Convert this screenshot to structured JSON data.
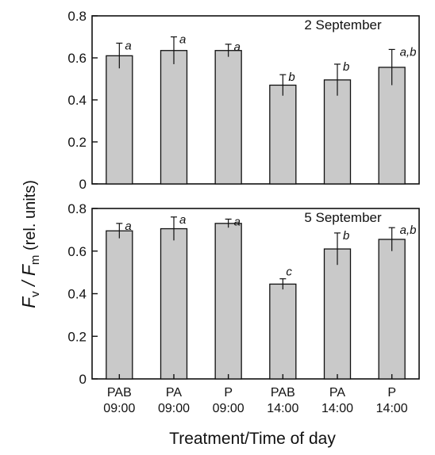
{
  "chart_data": {
    "type": "bar",
    "ylabel": "Fv / Fm (rel. units)",
    "ylabel_parts": {
      "main": "F",
      "sub1": "v",
      "slash": " / F",
      "sub2": "m",
      "units": " (rel. units)"
    },
    "xlabel": "Treatment/Time of day",
    "categories": [
      {
        "line1": "PAB",
        "line2": "09:00"
      },
      {
        "line1": "PA",
        "line2": "09:00"
      },
      {
        "line1": "P",
        "line2": "09:00"
      },
      {
        "line1": "PAB",
        "line2": "14:00"
      },
      {
        "line1": "PA",
        "line2": "14:00"
      },
      {
        "line1": "P",
        "line2": "14:00"
      }
    ],
    "panels": [
      {
        "title": "2 September",
        "ylim": [
          0,
          0.8
        ],
        "yticks": [
          "0",
          "0.2",
          "0.4",
          "0.6",
          "0.8"
        ],
        "values": [
          0.61,
          0.635,
          0.635,
          0.47,
          0.495,
          0.555
        ],
        "errors": [
          0.06,
          0.065,
          0.03,
          0.05,
          0.075,
          0.085
        ],
        "labels": [
          "a",
          "a",
          "a",
          "b",
          "b",
          "a,b"
        ]
      },
      {
        "title": "5 September",
        "ylim": [
          0,
          0.8
        ],
        "yticks": [
          "0",
          "0.2",
          "0.4",
          "0.6",
          "0.8"
        ],
        "values": [
          0.695,
          0.705,
          0.73,
          0.445,
          0.61,
          0.655
        ],
        "errors": [
          0.035,
          0.055,
          0.02,
          0.025,
          0.075,
          0.055
        ],
        "labels": [
          "a",
          "a",
          "a",
          "c",
          "b",
          "a,b"
        ]
      }
    ]
  }
}
